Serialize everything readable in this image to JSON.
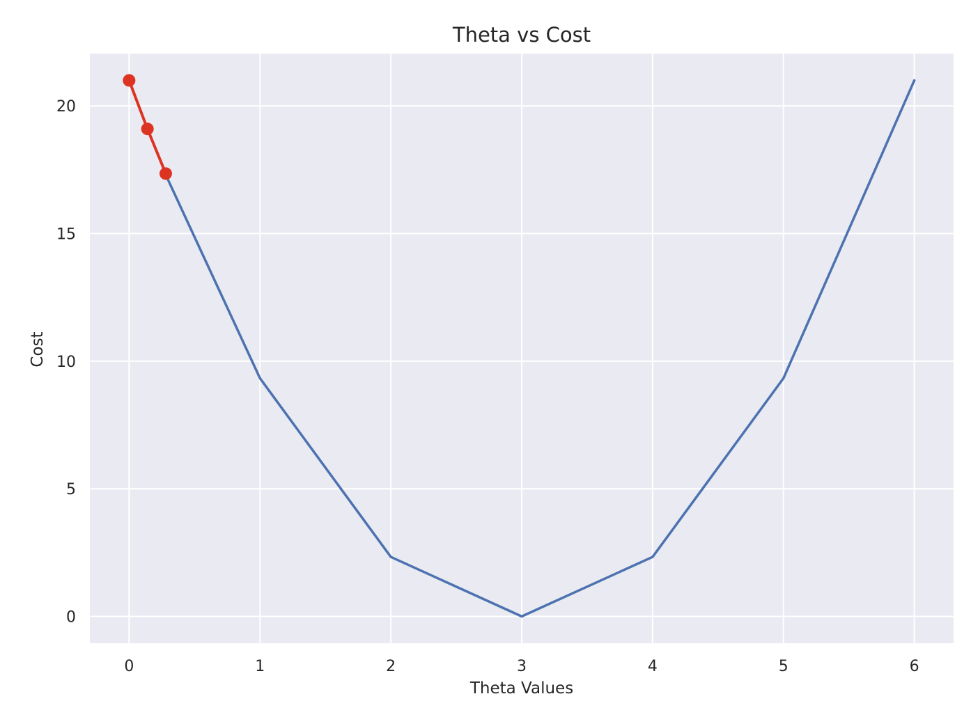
{
  "chart_data": {
    "type": "line",
    "title": "Theta vs Cost",
    "xlabel": "Theta Values",
    "ylabel": "Cost",
    "xlim": [
      -0.3,
      6.3
    ],
    "ylim": [
      -1.05,
      22.05
    ],
    "grid": true,
    "legend": "none",
    "xticks": [
      0,
      1,
      2,
      3,
      4,
      5,
      6
    ],
    "yticks": [
      0,
      5,
      10,
      15,
      20
    ],
    "series": [
      {
        "style": "line",
        "color": "#4c72b0",
        "x": [
          0.28,
          1,
          2,
          3,
          4,
          5,
          6
        ],
        "y": [
          17.3,
          9.33,
          2.33,
          0,
          2.33,
          9.33,
          21.0
        ]
      },
      {
        "style": "line-markers",
        "color": "#dd3322",
        "x": [
          0,
          0.14,
          0.28
        ],
        "y": [
          21.0,
          19.1,
          17.35
        ]
      }
    ]
  },
  "colors": {
    "plot_background": "#eaeaf2",
    "grid": "#ffffff"
  }
}
